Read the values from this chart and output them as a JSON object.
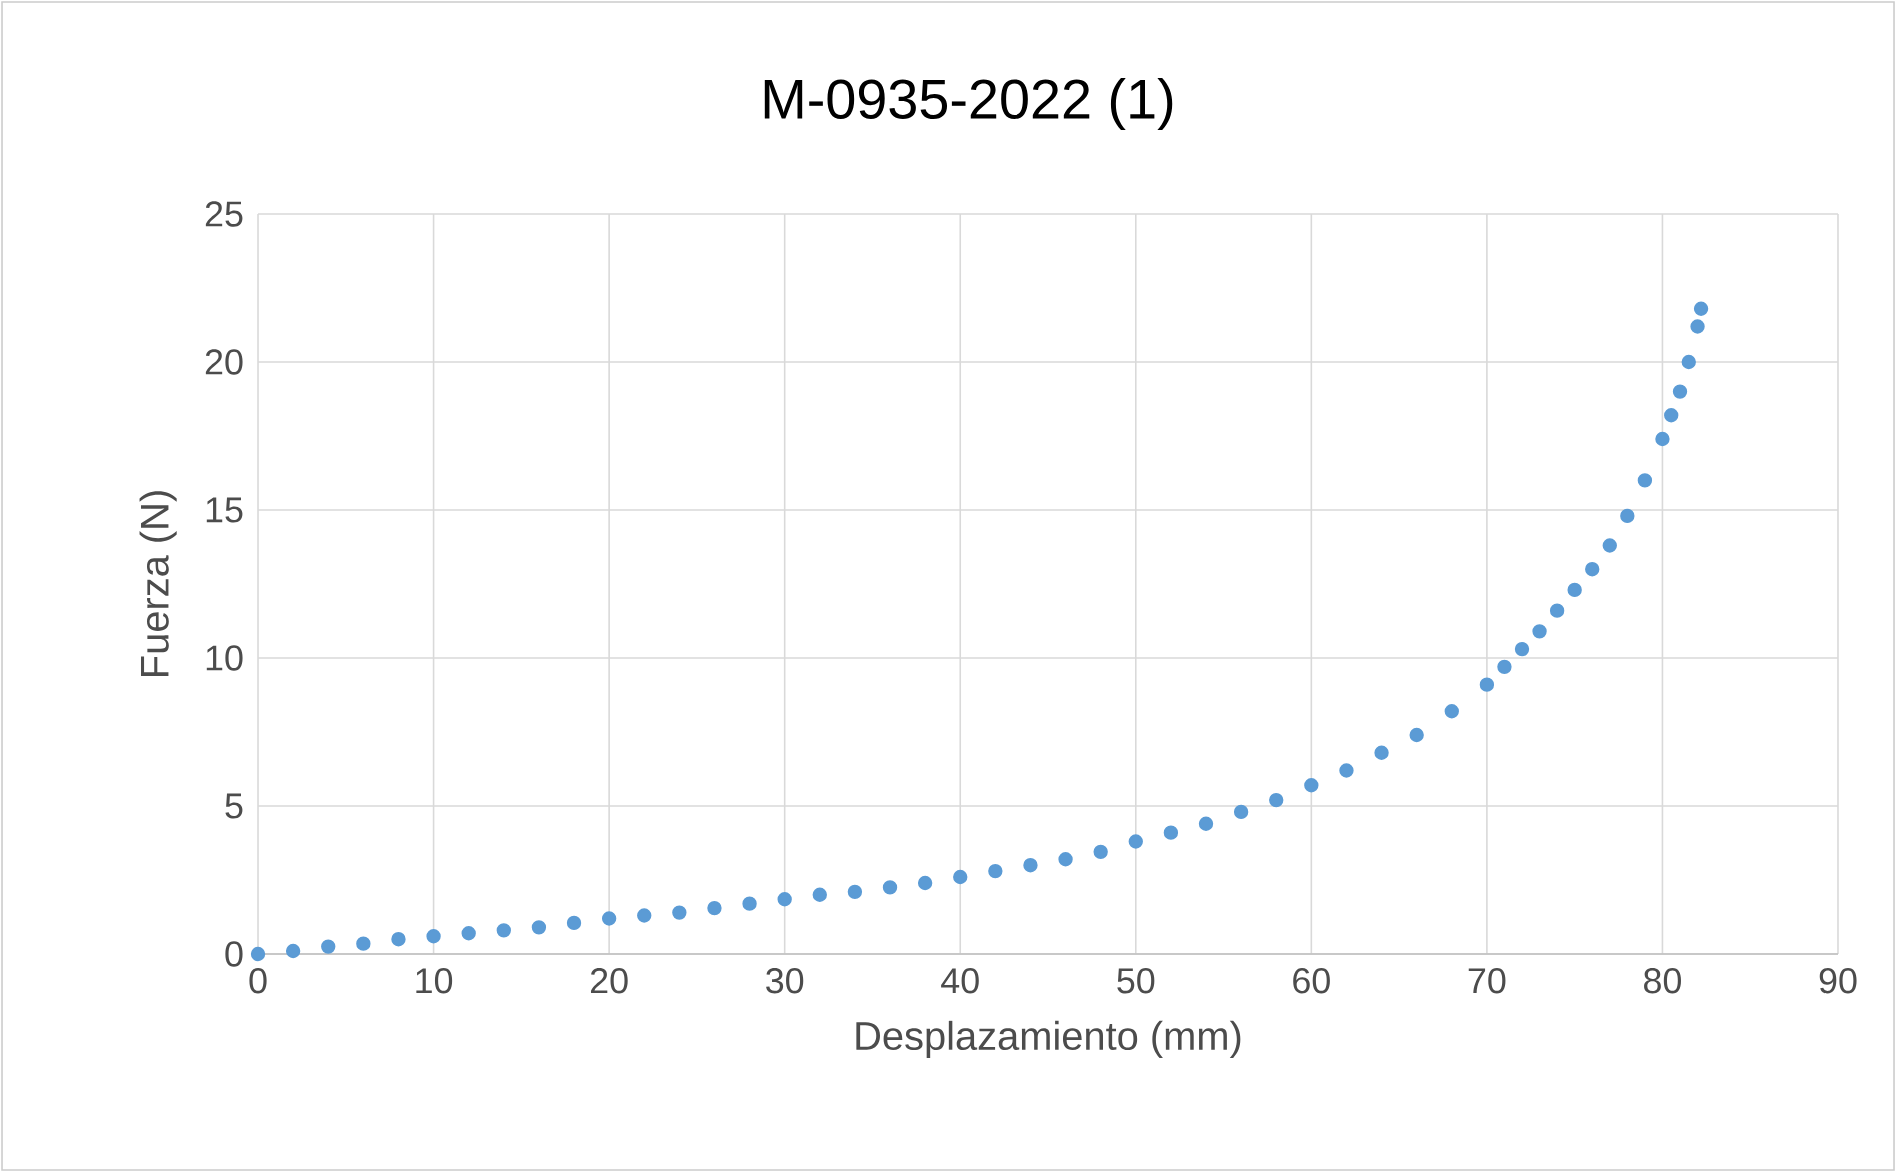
{
  "chart_data": {
    "type": "scatter",
    "title": "M-0935-2022 (1)",
    "xlabel": "Desplazamiento (mm)",
    "ylabel": "Fuerza (N)",
    "x": [
      0,
      2,
      4,
      6,
      8,
      10,
      12,
      14,
      16,
      18,
      20,
      22,
      24,
      26,
      28,
      30,
      32,
      34,
      36,
      38,
      40,
      42,
      44,
      46,
      48,
      50,
      52,
      54,
      56,
      58,
      60,
      62,
      64,
      66,
      68,
      70,
      71,
      72,
      73,
      74,
      75,
      76,
      77,
      78,
      79,
      80,
      80.5,
      81,
      81.5,
      82,
      82.2
    ],
    "values": [
      0,
      0.1,
      0.25,
      0.35,
      0.5,
      0.6,
      0.7,
      0.8,
      0.9,
      1.05,
      1.2,
      1.3,
      1.4,
      1.55,
      1.7,
      1.85,
      2.0,
      2.1,
      2.25,
      2.4,
      2.6,
      2.8,
      3.0,
      3.2,
      3.45,
      3.8,
      4.1,
      4.4,
      4.8,
      5.2,
      5.7,
      6.2,
      6.8,
      7.4,
      8.2,
      9.1,
      9.7,
      10.3,
      10.9,
      11.6,
      12.3,
      13.0,
      13.8,
      14.8,
      16.0,
      17.4,
      18.2,
      19.0,
      20.0,
      21.2,
      21.8
    ],
    "color": "#5b9bd5",
    "marker": "circle",
    "grid": true,
    "xlim": [
      0,
      90
    ],
    "xticks": [
      0,
      10,
      20,
      30,
      40,
      50,
      60,
      70,
      80,
      90
    ],
    "ylim": [
      0,
      25
    ],
    "yticks": [
      0,
      5,
      10,
      15,
      20,
      25
    ]
  }
}
